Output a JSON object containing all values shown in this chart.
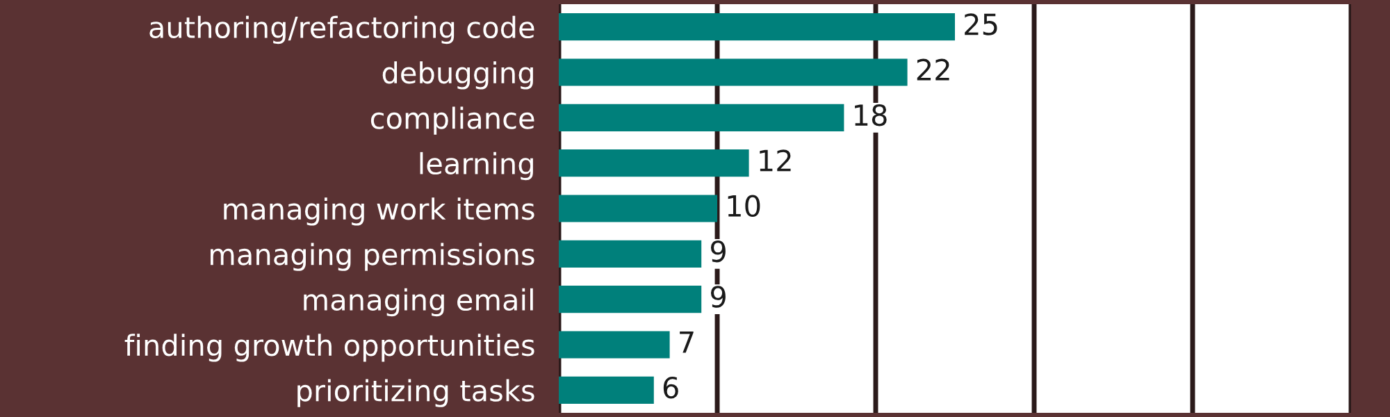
{
  "chart_data": {
    "type": "bar",
    "orientation": "horizontal",
    "categories": [
      "authoring/refactoring code",
      "debugging",
      "compliance",
      "learning",
      "managing work items",
      "managing permissions",
      "managing email",
      "finding growth opportunities",
      "prioritizing tasks"
    ],
    "values": [
      25,
      22,
      18,
      12,
      10,
      9,
      9,
      7,
      6
    ],
    "color": "#00807b",
    "data_labels": true,
    "xlim": [
      0,
      50
    ],
    "xticks": [
      {
        "value": 0,
        "label": null
      },
      {
        "value": 10,
        "label": null
      },
      {
        "value": 20,
        "label": null
      },
      {
        "value": 30,
        "label": null
      },
      {
        "value": 40,
        "label": null
      },
      {
        "value": 50,
        "label": null
      }
    ],
    "grid": "x",
    "tick_labels": "y"
  }
}
